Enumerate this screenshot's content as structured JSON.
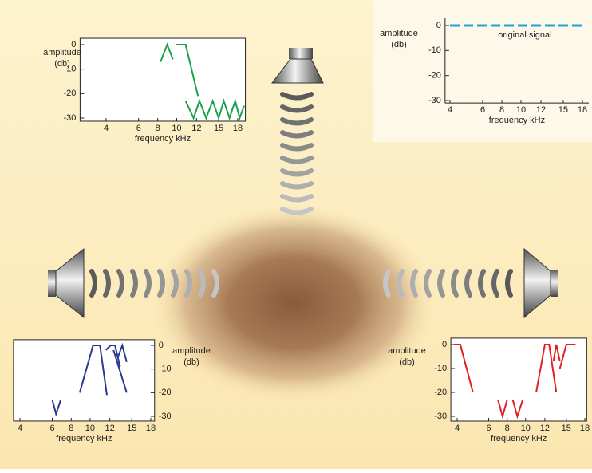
{
  "chart_data": [
    {
      "type": "line",
      "xlabel": "frequency kHz",
      "ylabel": [
        "amplitude",
        "(db)"
      ],
      "xlim": [
        2.4,
        19.2
      ],
      "ylim": [
        -31.3,
        2.6
      ],
      "xticks": [
        4,
        6,
        8,
        10,
        12,
        15,
        18
      ],
      "yticks": [
        0,
        -10,
        -20,
        -30
      ],
      "series": [
        {
          "color": "#1aa34a",
          "x": [
            8.3,
            9,
            9.6,
            null,
            9.9,
            10.9,
            12.2,
            null,
            10.9,
            11.7,
            12.4,
            13.3,
            14.2,
            15,
            15.8,
            16.7,
            17.6,
            18.3,
            19
          ],
          "values": [
            -7,
            0,
            -6,
            null,
            0,
            0,
            -21,
            null,
            -23,
            -30,
            -23,
            -30,
            -23,
            -30,
            -23,
            -30,
            -23,
            -30,
            -25
          ]
        }
      ]
    },
    {
      "type": "line",
      "xlabel": "frequency kHz",
      "ylabel": [
        "amplitude",
        "(db)"
      ],
      "annotation": "original signal",
      "xlim": [
        3.7,
        19
      ],
      "ylim": [
        -31,
        3
      ],
      "xticks": [
        4,
        6,
        8,
        10,
        12,
        15,
        18
      ],
      "yticks": [
        0,
        -10,
        -20,
        -30
      ],
      "series": [
        {
          "color": "#1fa3dc",
          "linestyle": "dashed",
          "x": [
            4,
            18.6
          ],
          "values": [
            0,
            0
          ]
        }
      ]
    },
    {
      "type": "line",
      "xlabel": "frequency kHz",
      "ylabel": [
        "amplitude",
        "(db)"
      ],
      "xlim": [
        3.6,
        18.6
      ],
      "ylim": [
        -32,
        2.4
      ],
      "xticks": [
        4,
        6,
        8,
        10,
        12,
        15,
        18
      ],
      "yticks": [
        0,
        -10,
        -20,
        -30
      ],
      "series": [
        {
          "color": "#2b3990",
          "x": [
            6,
            6.4,
            6.9,
            null,
            8.9,
            10.3,
            11,
            11.7,
            null,
            11.6,
            12.1,
            12.7,
            13.4,
            null,
            13.1,
            13.7,
            14.3,
            null,
            12.5,
            14.3
          ],
          "values": [
            -23,
            -29,
            -23,
            null,
            -20,
            0,
            0,
            -21,
            null,
            -2,
            0,
            0,
            -9,
            null,
            -5,
            0,
            -7,
            null,
            -2,
            -20
          ]
        }
      ]
    },
    {
      "type": "line",
      "xlabel": "frequency kHz",
      "ylabel": [
        "amplitude",
        "(db)"
      ],
      "xlim": [
        3.6,
        18.3
      ],
      "ylim": [
        -32,
        2.7
      ],
      "xticks": [
        4,
        6,
        8,
        10,
        12,
        15,
        18
      ],
      "yticks": [
        0,
        -10,
        -20,
        -30
      ],
      "series": [
        {
          "color": "#e31e24",
          "x": [
            3.8,
            4.2,
            5,
            null,
            7,
            7.5,
            8,
            null,
            8.6,
            9.1,
            9.7,
            null,
            11.1,
            12,
            12.6,
            13.6,
            null,
            13.2,
            13.6,
            14.1,
            null,
            14.1,
            15,
            16.5
          ],
          "values": [
            0,
            0,
            -20,
            null,
            -23,
            -30,
            -23,
            null,
            -23,
            -30,
            -23,
            null,
            -20,
            0,
            0,
            -20,
            null,
            -7,
            0,
            -7,
            null,
            -10,
            0,
            0
          ]
        }
      ]
    }
  ]
}
